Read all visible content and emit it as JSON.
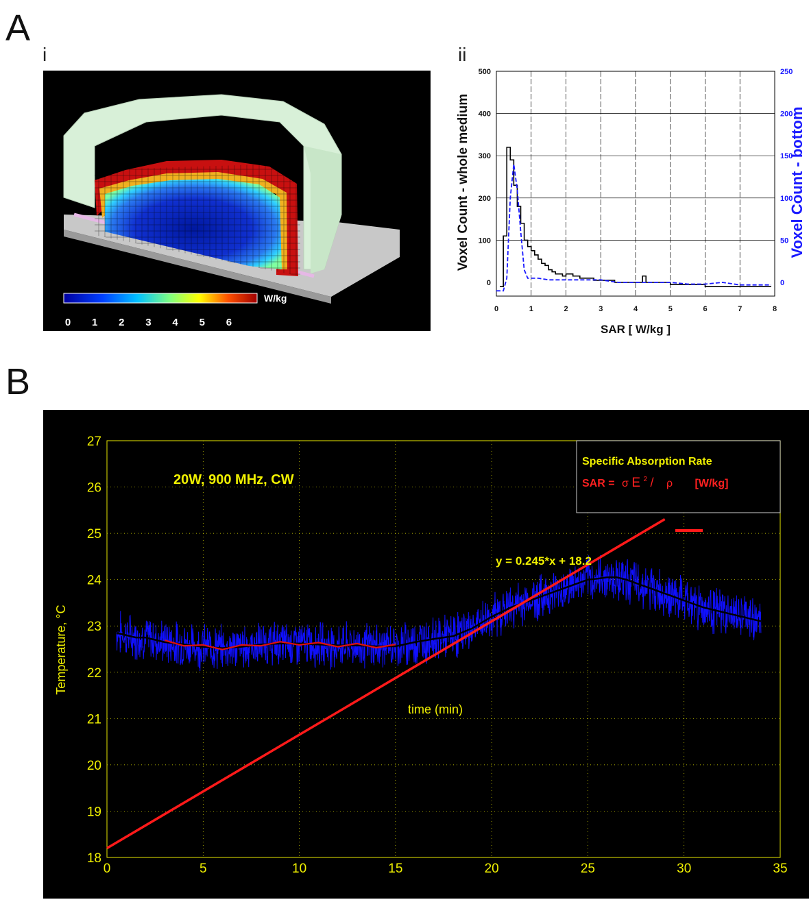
{
  "labels": {
    "panel_a": "A",
    "panel_b": "B",
    "sub_i": "i",
    "sub_ii": "ii"
  },
  "render3d": {
    "colorbar_ticks": [
      "0",
      "1",
      "2",
      "3",
      "4",
      "5",
      "6"
    ],
    "colorbar_unit": "W/kg",
    "colorbar_range": [
      0,
      6
    ]
  },
  "chart_data": [
    {
      "type": "line",
      "xlabel": "SAR [ W/kg ]",
      "ylabel_left": "Voxel Count - whole medium",
      "ylabel_right": "Voxel Count - bottom",
      "xlim": [
        0,
        8
      ],
      "ylim_left": [
        0,
        500
      ],
      "ylim_right": [
        0,
        250
      ],
      "x_ticks": [
        "0",
        "1",
        "2",
        "3",
        "4",
        "5",
        "6",
        "7",
        "8"
      ],
      "y_ticks_left": [
        "0",
        "100",
        "200",
        "300",
        "400",
        "500"
      ],
      "y_ticks_right": [
        "0",
        "50",
        "100",
        "150",
        "200",
        "250"
      ],
      "grid": true,
      "series": [
        {
          "color": "#000000",
          "style": "solid-step",
          "axis": "left",
          "x": [
            0.1,
            0.2,
            0.3,
            0.4,
            0.5,
            0.6,
            0.7,
            0.8,
            0.9,
            1.0,
            1.1,
            1.2,
            1.3,
            1.4,
            1.5,
            1.6,
            1.7,
            1.8,
            1.9,
            2.0,
            2.2,
            2.4,
            2.6,
            2.8,
            3.0,
            3.2,
            3.4,
            3.6,
            3.8,
            4.0,
            4.2,
            4.3,
            4.4,
            4.6,
            4.8,
            5.0,
            5.5,
            6.0,
            6.5,
            7.0,
            7.5,
            7.9
          ],
          "values": [
            -10,
            110,
            320,
            290,
            230,
            180,
            140,
            100,
            85,
            75,
            65,
            55,
            45,
            40,
            30,
            25,
            20,
            20,
            15,
            20,
            15,
            10,
            10,
            5,
            5,
            5,
            0,
            0,
            0,
            0,
            15,
            0,
            0,
            0,
            0,
            -5,
            -5,
            -10,
            -10,
            -10,
            -10,
            -10
          ]
        },
        {
          "color": "#1a1aff",
          "style": "dashed",
          "axis": "right",
          "x": [
            0.0,
            0.2,
            0.3,
            0.4,
            0.5,
            0.6,
            0.7,
            0.8,
            0.9,
            1.0,
            1.2,
            1.5,
            1.8,
            2.0,
            2.3,
            2.6,
            3.0,
            3.5,
            4.0,
            4.5,
            5.0,
            5.5,
            6.0,
            6.5,
            7.0,
            7.5,
            7.9
          ],
          "values": [
            -10,
            -10,
            5,
            100,
            140,
            110,
            60,
            15,
            5,
            5,
            5,
            3,
            3,
            3,
            3,
            3,
            3,
            0,
            0,
            0,
            0,
            -2,
            -2,
            0,
            -3,
            -3,
            -3
          ]
        }
      ]
    },
    {
      "type": "line",
      "ylabel": "Temperature, °C",
      "xlabel": "time (min)",
      "annotation": "20W, 900 MHz, CW",
      "fit_label": "y = 0.245*x + 18.2",
      "xlim": [
        0,
        35
      ],
      "ylim": [
        18,
        27
      ],
      "x_ticks": [
        "0",
        "5",
        "10",
        "15",
        "20",
        "25",
        "30",
        "35"
      ],
      "y_ticks": [
        "18",
        "19",
        "20",
        "21",
        "22",
        "23",
        "24",
        "25",
        "26",
        "27"
      ],
      "grid": "dotted",
      "legend": {
        "title": "Specific Absorption Rate",
        "sar": "SAR =",
        "sigma": "σ",
        "e": "E",
        "sup": "2",
        "slash": "/",
        "rho": "ρ",
        "unit": "[W/kg]"
      },
      "colors": {
        "raw": "#1010ff",
        "smooth": "#000000",
        "segment": "#e01010",
        "fit": "#ff1a1a",
        "accent": "#e8e800"
      },
      "fit": {
        "slope": 0.245,
        "intercept": 18.2,
        "x_range": [
          0,
          29
        ]
      },
      "series": [
        {
          "name": "smoothed",
          "x": [
            0.5,
            1,
            1.5,
            2,
            2.5,
            3,
            4,
            5,
            6,
            7,
            8,
            9,
            10,
            11,
            12,
            13,
            14,
            15,
            16,
            17,
            18,
            19,
            20,
            21,
            22,
            23,
            24,
            25,
            25.5,
            26,
            26.5,
            27,
            28,
            29,
            30,
            31,
            32,
            33,
            34
          ],
          "values": [
            22.85,
            22.8,
            22.75,
            22.75,
            22.7,
            22.65,
            22.6,
            22.55,
            22.52,
            22.55,
            22.6,
            22.62,
            22.62,
            22.6,
            22.58,
            22.58,
            22.56,
            22.56,
            22.65,
            22.72,
            22.78,
            22.95,
            23.2,
            23.4,
            23.55,
            23.7,
            23.85,
            24.0,
            24.02,
            24.05,
            24.05,
            24.0,
            23.85,
            23.7,
            23.55,
            23.4,
            23.3,
            23.2,
            23.1
          ]
        }
      ]
    }
  ]
}
